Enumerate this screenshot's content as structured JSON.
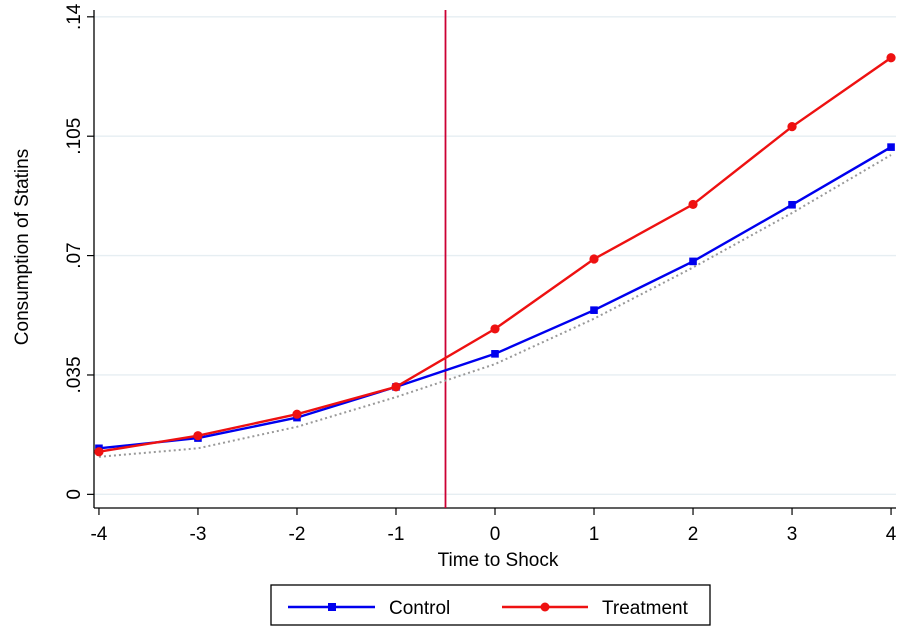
{
  "chart_data": {
    "type": "line",
    "title": "",
    "xlabel": "Time to Shock",
    "ylabel": "Consumption of Statins",
    "x": [
      -4,
      -3,
      -2,
      -1,
      0,
      1,
      2,
      3,
      4
    ],
    "x_tick_labels": [
      "-4",
      "-3",
      "-2",
      "-1",
      "0",
      "1",
      "2",
      "3",
      "4"
    ],
    "y_ticks": [
      0,
      0.035,
      0.07,
      0.105,
      0.14
    ],
    "y_tick_labels": [
      "0",
      ".035",
      ".07",
      ".105",
      ".14"
    ],
    "xlim": [
      -4.05,
      4.05
    ],
    "ylim": [
      -0.004,
      0.142
    ],
    "grid": true,
    "legend_position": "bottom",
    "shock_line_x": -0.5,
    "series": [
      {
        "name": "Control",
        "color": "#0000ee",
        "marker": "square",
        "values": [
          0.0135,
          0.0165,
          0.0225,
          0.0315,
          0.0412,
          0.054,
          0.0683,
          0.0849,
          0.1018
        ]
      },
      {
        "name": "Treatment",
        "color": "#ee1111",
        "marker": "circle",
        "values": [
          0.0125,
          0.0172,
          0.0235,
          0.0315,
          0.0485,
          0.069,
          0.085,
          0.1078,
          0.128
        ]
      },
      {
        "color": "#999999",
        "marker": "none",
        "style": "dotted",
        "values": [
          0.011,
          0.0135,
          0.0198,
          0.0285,
          0.0382,
          0.0515,
          0.0665,
          0.0825,
          0.0995
        ]
      }
    ]
  }
}
